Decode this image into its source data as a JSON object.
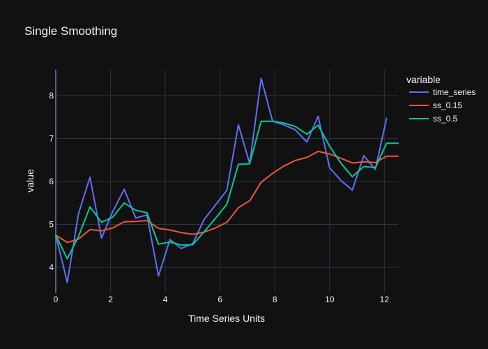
{
  "chart_data": {
    "type": "line",
    "title": "Single Smoothing",
    "xlabel": "Time Series Units",
    "ylabel": "value",
    "xlim": [
      0,
      12.5
    ],
    "ylim": [
      3.4,
      8.6
    ],
    "xticks": [
      "0",
      "2",
      "4",
      "6",
      "8",
      "10",
      "12"
    ],
    "xtick_values": [
      0,
      2,
      4,
      6,
      8,
      10,
      12
    ],
    "yticks": [
      "4",
      "5",
      "6",
      "7",
      "8"
    ],
    "ytick_values": [
      4,
      5,
      6,
      7,
      8
    ],
    "grid": true,
    "legend": {
      "title": "variable",
      "placement": "right"
    },
    "x": [
      0,
      0.42,
      0.83,
      1.25,
      1.67,
      2.08,
      2.5,
      2.92,
      3.33,
      3.75,
      4.17,
      4.58,
      5.0,
      5.42,
      5.83,
      6.25,
      6.67,
      7.08,
      7.5,
      7.92,
      8.33,
      8.75,
      9.17,
      9.58,
      10.0,
      10.42,
      10.83,
      11.25,
      11.67,
      12.08,
      12.5
    ],
    "series": [
      {
        "name": "time_series",
        "color": "#636efa",
        "values": [
          4.75,
          3.65,
          5.25,
          6.1,
          4.68,
          5.3,
          5.82,
          5.15,
          5.22,
          3.8,
          4.65,
          4.44,
          4.55,
          5.12,
          5.45,
          5.8,
          7.32,
          6.42,
          8.4,
          7.4,
          7.32,
          7.2,
          6.92,
          7.52,
          6.32,
          6.02,
          5.8,
          6.6,
          6.28,
          7.47,
          null
        ]
      },
      {
        "name": "ss_0.15",
        "color": "#ef553b",
        "values": [
          4.75,
          4.58,
          4.66,
          4.88,
          4.85,
          4.92,
          5.06,
          5.07,
          5.09,
          4.91,
          4.87,
          4.81,
          4.77,
          4.82,
          4.92,
          5.05,
          5.39,
          5.55,
          5.98,
          6.19,
          6.36,
          6.49,
          6.56,
          6.7,
          6.64,
          6.54,
          6.43,
          6.46,
          6.44,
          6.59,
          6.59
        ]
      },
      {
        "name": "ss_0.5",
        "color": "#00cc96",
        "values": [
          4.75,
          4.2,
          4.72,
          5.41,
          5.05,
          5.17,
          5.5,
          5.33,
          5.27,
          4.54,
          4.59,
          4.52,
          4.53,
          4.83,
          5.14,
          5.47,
          6.4,
          6.41,
          7.4,
          7.4,
          7.36,
          7.28,
          7.1,
          7.31,
          6.82,
          6.42,
          6.11,
          6.35,
          6.32,
          6.89,
          6.89
        ]
      }
    ]
  }
}
